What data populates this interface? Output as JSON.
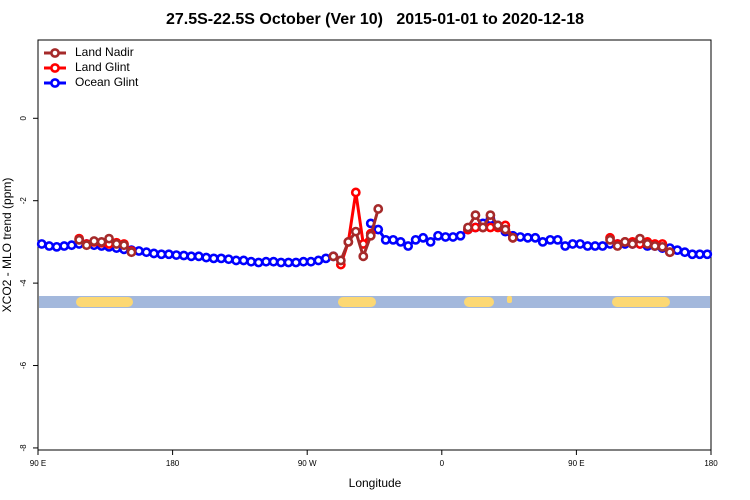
{
  "chart_data": {
    "type": "line",
    "title": "27.5S-22.5S October (Ver 10)   2015-01-01 to 2020-12-18",
    "x_label": "Longitude",
    "y_label": "XCO2 - MLO trend (ppm)",
    "xlim": [
      90,
      540
    ],
    "ylim": [
      -8.05,
      1.9
    ],
    "xticks": [
      {
        "value": 90,
        "label": "90 E"
      },
      180,
      {
        "value": 270,
        "label": "90 W"
      },
      {
        "value": 360,
        "label": "0"
      },
      {
        "value": 450,
        "label": "90 E"
      },
      {
        "value": 540,
        "label": "180"
      }
    ],
    "yticks": [
      0,
      -2,
      -4,
      -6,
      -8
    ],
    "legend": "top-left",
    "x": [
      92.5,
      97.5,
      102.5,
      107.5,
      112.5,
      117.5,
      122.5,
      127.5,
      132.5,
      137.5,
      142.5,
      147.5,
      152.5,
      157.5,
      162.5,
      167.5,
      172.5,
      177.5,
      182.5,
      187.5,
      192.5,
      197.5,
      202.5,
      207.5,
      212.5,
      217.5,
      222.5,
      227.5,
      232.5,
      237.5,
      242.5,
      247.5,
      252.5,
      257.5,
      262.5,
      267.5,
      272.5,
      277.5,
      282.5,
      287.5,
      292.5,
      297.5,
      302.5,
      307.5,
      312.5,
      317.5,
      322.5,
      327.5,
      332.5,
      337.5,
      342.5,
      347.5,
      352.5,
      357.5,
      362.5,
      367.5,
      372.5,
      377.5,
      382.5,
      387.5,
      392.5,
      397.5,
      402.5,
      407.5,
      412.5,
      417.5,
      422.5,
      427.5,
      432.5,
      437.5,
      442.5,
      447.5,
      452.5,
      457.5,
      462.5,
      467.5,
      472.5,
      477.5,
      482.5,
      487.5,
      492.5,
      497.5,
      502.5,
      507.5,
      512.5,
      517.5,
      522.5,
      527.5,
      532.5,
      537.5
    ],
    "series": [
      {
        "name": "Land Nadir",
        "color": "#a52a2a",
        "values": [
          null,
          null,
          null,
          null,
          null,
          -2.95,
          -3.08,
          -2.98,
          -3.0,
          -2.92,
          -3.05,
          -3.08,
          -3.25,
          null,
          null,
          null,
          null,
          null,
          null,
          null,
          null,
          null,
          null,
          null,
          null,
          null,
          null,
          null,
          null,
          null,
          null,
          null,
          null,
          null,
          null,
          null,
          null,
          null,
          null,
          -3.35,
          -3.45,
          -3.0,
          -2.75,
          -3.35,
          -2.85,
          -2.2,
          null,
          null,
          null,
          null,
          null,
          null,
          null,
          null,
          null,
          null,
          null,
          -2.65,
          -2.35,
          -2.65,
          -2.35,
          -2.6,
          -2.7,
          -2.9,
          null,
          null,
          null,
          null,
          null,
          null,
          null,
          null,
          null,
          null,
          null,
          null,
          -2.95,
          -3.1,
          -3.0,
          -3.05,
          -2.92,
          -3.05,
          -3.1,
          -3.12,
          -3.25,
          null,
          null,
          null,
          null,
          null
        ]
      },
      {
        "name": "Land Glint",
        "color": "#ff0000",
        "values": [
          null,
          null,
          null,
          null,
          null,
          -2.92,
          -3.05,
          -3.0,
          -3.02,
          -3.05,
          -3.02,
          -3.05,
          -3.22,
          null,
          null,
          null,
          null,
          null,
          null,
          null,
          null,
          null,
          null,
          null,
          null,
          null,
          null,
          null,
          null,
          null,
          null,
          null,
          null,
          null,
          null,
          null,
          null,
          null,
          null,
          null,
          -3.55,
          -3.0,
          -1.8,
          -3.05,
          -2.8,
          null,
          null,
          null,
          null,
          null,
          null,
          null,
          null,
          null,
          null,
          null,
          null,
          -2.7,
          -2.65,
          -2.65,
          -2.65,
          -2.65,
          -2.6,
          -2.9,
          null,
          null,
          null,
          null,
          null,
          null,
          null,
          null,
          null,
          null,
          null,
          null,
          -2.9,
          -3.05,
          -3.0,
          -3.0,
          -3.05,
          -3.0,
          -3.05,
          -3.05,
          -3.25,
          null,
          null,
          null,
          null,
          null
        ]
      },
      {
        "name": "Ocean Glint",
        "color": "#0000ff",
        "values": [
          -3.05,
          -3.1,
          -3.12,
          -3.1,
          -3.08,
          -3.05,
          -3.05,
          -3.08,
          -3.1,
          -3.12,
          -3.15,
          -3.18,
          -3.2,
          -3.22,
          -3.25,
          -3.28,
          -3.3,
          -3.3,
          -3.32,
          -3.33,
          -3.35,
          -3.35,
          -3.38,
          -3.4,
          -3.4,
          -3.42,
          -3.45,
          -3.45,
          -3.48,
          -3.5,
          -3.48,
          -3.48,
          -3.5,
          -3.5,
          -3.5,
          -3.48,
          -3.48,
          -3.45,
          -3.4,
          -3.35,
          null,
          null,
          null,
          null,
          -2.55,
          -2.7,
          -2.95,
          -2.95,
          -3.0,
          -3.1,
          -2.95,
          -2.9,
          -3.0,
          -2.85,
          -2.88,
          -2.88,
          -2.85,
          -2.7,
          -2.65,
          -2.55,
          -2.45,
          -2.6,
          -2.75,
          -2.85,
          -2.88,
          -2.9,
          -2.9,
          -3.0,
          -2.95,
          -2.95,
          -3.1,
          -3.05,
          -3.05,
          -3.1,
          -3.1,
          -3.1,
          -3.05,
          -3.05,
          -3.05,
          -3.05,
          -3.05,
          -3.1,
          -3.1,
          -3.15,
          -3.15,
          -3.2,
          -3.25,
          -3.3,
          -3.3,
          -3.3
        ]
      }
    ]
  }
}
